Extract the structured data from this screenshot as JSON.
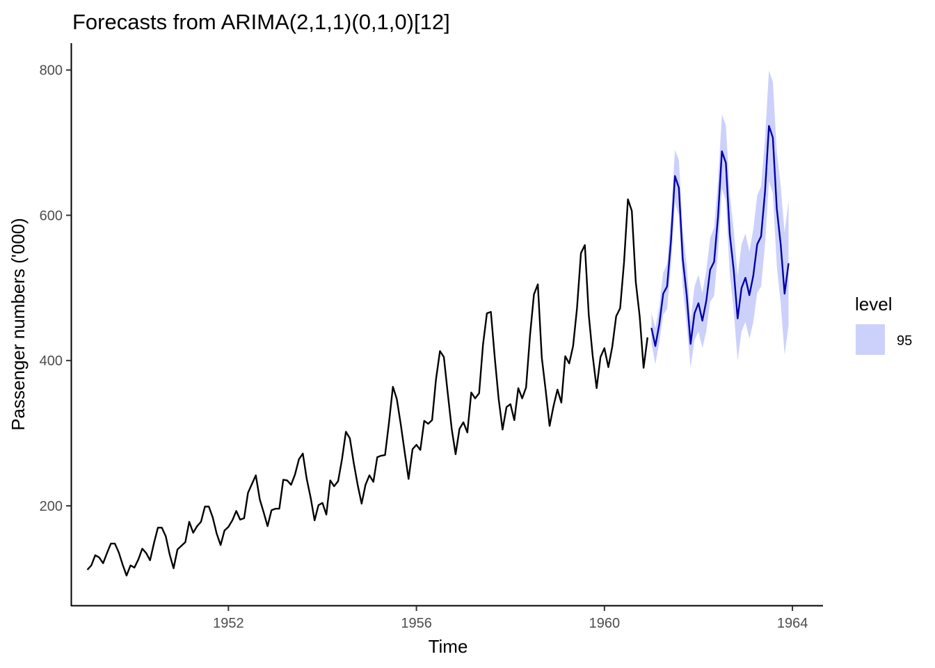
{
  "chart_data": {
    "type": "line",
    "title": "Forecasts from ARIMA(2,1,1)(0,1,0)[12]",
    "xlabel": "Time",
    "ylabel": "Passenger numbers ('000)",
    "xlim": [
      1948.65,
      1964.65
    ],
    "ylim": [
      62,
      837
    ],
    "x_ticks": [
      1952,
      1956,
      1960,
      1964
    ],
    "x_tick_labels": [
      "1952",
      "1956",
      "1960",
      "1964"
    ],
    "y_ticks": [
      200,
      400,
      600,
      800
    ],
    "y_tick_labels": [
      "200",
      "400",
      "600",
      "800"
    ],
    "grid": false,
    "legend": {
      "title": "level",
      "position": "right",
      "entries": [
        {
          "label": "95",
          "color": "#ccd1fb"
        }
      ]
    },
    "colors": {
      "observed": "#000000",
      "forecast": "#0000aa",
      "band": "#ccd1fb"
    },
    "series": [
      {
        "name": "observed",
        "start": 1949.0,
        "frequency": 12,
        "values": [
          112,
          118,
          132,
          129,
          121,
          135,
          148,
          148,
          136,
          119,
          104,
          118,
          115,
          126,
          141,
          135,
          125,
          149,
          170,
          170,
          158,
          133,
          114,
          140,
          145,
          150,
          178,
          163,
          172,
          178,
          199,
          199,
          184,
          162,
          146,
          166,
          171,
          180,
          193,
          181,
          183,
          218,
          230,
          242,
          209,
          191,
          172,
          194,
          196,
          196,
          236,
          235,
          229,
          243,
          264,
          272,
          237,
          211,
          180,
          201,
          204,
          188,
          235,
          227,
          234,
          264,
          302,
          293,
          259,
          229,
          203,
          229,
          242,
          233,
          267,
          269,
          270,
          315,
          364,
          347,
          312,
          274,
          237,
          278,
          284,
          277,
          317,
          313,
          318,
          374,
          413,
          405,
          355,
          306,
          271,
          306,
          315,
          301,
          356,
          348,
          355,
          422,
          465,
          467,
          404,
          347,
          305,
          336,
          340,
          318,
          362,
          348,
          363,
          435,
          491,
          505,
          404,
          359,
          310,
          337,
          360,
          342,
          406,
          396,
          420,
          472,
          548,
          559,
          463,
          407,
          362,
          405,
          417,
          391,
          419,
          461,
          472,
          535,
          622,
          606,
          508,
          461,
          390,
          432
        ]
      },
      {
        "name": "forecast",
        "start": 1961.0,
        "frequency": 12,
        "values": [
          445,
          420,
          450,
          492,
          502,
          565,
          654,
          638,
          540,
          490,
          423,
          465,
          479,
          455,
          482,
          525,
          536,
          598,
          688,
          672,
          574,
          525,
          458,
          500,
          514,
          490,
          517,
          560,
          571,
          633,
          723,
          707,
          609,
          560,
          492,
          534
        ],
        "lower95": [
          424,
          395,
          425,
          463,
          471,
          531,
          618,
          600,
          500,
          449,
          390,
          428,
          440,
          417,
          440,
          481,
          489,
          549,
          637,
          620,
          519,
          469,
          400,
          440,
          453,
          430,
          453,
          493,
          502,
          560,
          647,
          630,
          530,
          479,
          408,
          448
        ],
        "upper95": [
          466,
          445,
          475,
          521,
          533,
          599,
          690,
          676,
          580,
          531,
          456,
          502,
          518,
          493,
          524,
          569,
          583,
          647,
          739,
          724,
          629,
          581,
          516,
          560,
          575,
          550,
          581,
          627,
          640,
          706,
          799,
          784,
          688,
          641,
          576,
          620
        ]
      }
    ]
  }
}
